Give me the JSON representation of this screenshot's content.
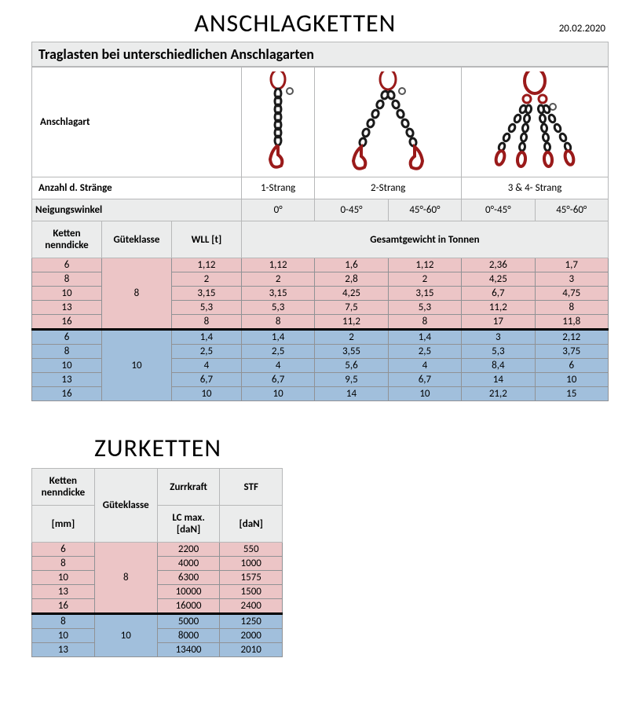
{
  "title": "ANSCHLAGKETTEN",
  "date": "20.02.2020",
  "subtitle": "Traglasten bei unterschiedlichen Anschlagarten",
  "headers": {
    "anschlagart": "Anschlagart",
    "anzahl": "Anzahl d. Stränge",
    "strands": [
      "1-Strang",
      "2-Strang",
      "3 & 4- Strang"
    ],
    "neigung": "Neigungswinkel",
    "angles": [
      "0°",
      "0-45°",
      "45°-60°",
      "0°-45°",
      "45°-60°"
    ],
    "ketten": "Ketten nenndicke",
    "guete": "Güteklasse",
    "wll": "WLL [t]",
    "gesamt": "Gesamtgewicht in Tonnen"
  },
  "grade8": {
    "label": "8",
    "color": "#ecc5c6",
    "rows": [
      {
        "d": "6",
        "v": [
          "1,12",
          "1,12",
          "1,6",
          "1,12",
          "2,36",
          "1,7"
        ]
      },
      {
        "d": "8",
        "v": [
          "2",
          "2",
          "2,8",
          "2",
          "4,25",
          "3"
        ]
      },
      {
        "d": "10",
        "v": [
          "3,15",
          "3,15",
          "4,25",
          "3,15",
          "6,7",
          "4,75"
        ]
      },
      {
        "d": "13",
        "v": [
          "5,3",
          "5,3",
          "7,5",
          "5,3",
          "11,2",
          "8"
        ]
      },
      {
        "d": "16",
        "v": [
          "8",
          "8",
          "11,2",
          "8",
          "17",
          "11,8"
        ]
      }
    ]
  },
  "grade10": {
    "label": "10",
    "color": "#a1bfdc",
    "rows": [
      {
        "d": "6",
        "v": [
          "1,4",
          "1,4",
          "2",
          "1,4",
          "3",
          "2,12"
        ]
      },
      {
        "d": "8",
        "v": [
          "2,5",
          "2,5",
          "3,55",
          "2,5",
          "5,3",
          "3,75"
        ]
      },
      {
        "d": "10",
        "v": [
          "4",
          "4",
          "5,6",
          "4",
          "8,4",
          "6"
        ]
      },
      {
        "d": "13",
        "v": [
          "6,7",
          "6,7",
          "9,5",
          "6,7",
          "14",
          "10"
        ]
      },
      {
        "d": "16",
        "v": [
          "10",
          "10",
          "14",
          "10",
          "21,2",
          "15"
        ]
      }
    ]
  },
  "zurketten": {
    "title": "ZURKETTEN",
    "headers": {
      "ketten": "Ketten nenndicke",
      "mm": "[mm]",
      "guete": "Güteklasse",
      "zurr": "Zurrkraft",
      "lc": "LC max. [daN]",
      "stf": "STF",
      "dan": "[daN]"
    },
    "grade8": {
      "label": "8",
      "rows": [
        {
          "d": "6",
          "lc": "2200",
          "stf": "550"
        },
        {
          "d": "8",
          "lc": "4000",
          "stf": "1000"
        },
        {
          "d": "10",
          "lc": "6300",
          "stf": "1575"
        },
        {
          "d": "13",
          "lc": "10000",
          "stf": "1500"
        },
        {
          "d": "16",
          "lc": "16000",
          "stf": "2400"
        }
      ]
    },
    "grade10": {
      "label": "10",
      "rows": [
        {
          "d": "8",
          "lc": "5000",
          "stf": "1250"
        },
        {
          "d": "10",
          "lc": "8000",
          "stf": "2000"
        },
        {
          "d": "13",
          "lc": "13400",
          "stf": "2010"
        }
      ]
    }
  },
  "colors": {
    "pink": "#ecc5c6",
    "blue": "#a1bfdc",
    "grey": "#ebecec",
    "border": "#b7b8b9",
    "chain_red": "#9a1a1a",
    "chain_dark": "#1a1a1a"
  }
}
